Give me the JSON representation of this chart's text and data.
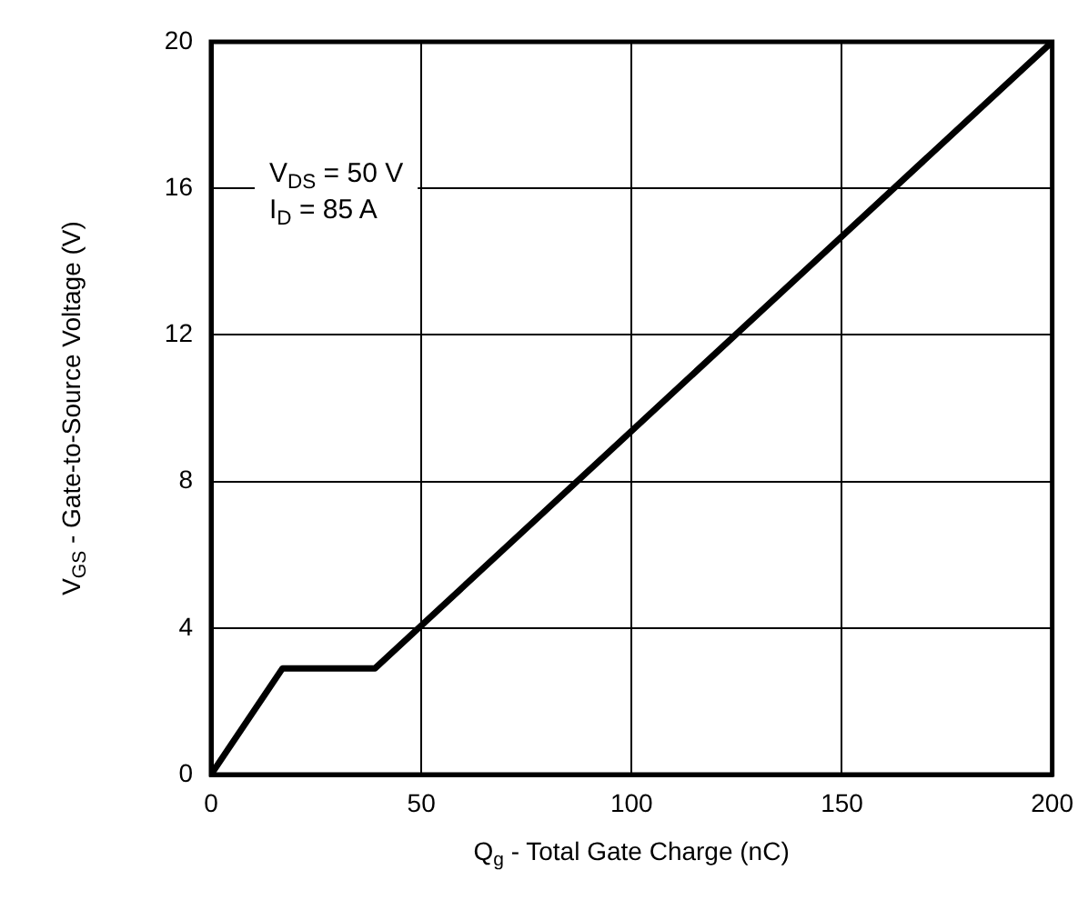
{
  "chart_data": {
    "type": "line",
    "xlabel": "Q$_{g}$ - Total Gate Charge (nC)",
    "ylabel": "V$_{GS}$ - Gate-to-Source Voltage (V)",
    "x": [
      0,
      17,
      39,
      200
    ],
    "series": [
      {
        "color": "#000000",
        "values": [
          0,
          2.9,
          2.9,
          20
        ]
      }
    ],
    "xlim": [
      0,
      200
    ],
    "xticks": [
      0,
      50,
      100,
      150,
      200
    ],
    "ylim": [
      0,
      20
    ],
    "yticks": [
      0,
      4,
      8,
      12,
      16,
      20
    ],
    "grid": true,
    "marker": "none",
    "line_style": "solid",
    "annotations": [
      "V$_{DS}$ = 50 V",
      "I$_{D}$ = 85 A"
    ]
  }
}
